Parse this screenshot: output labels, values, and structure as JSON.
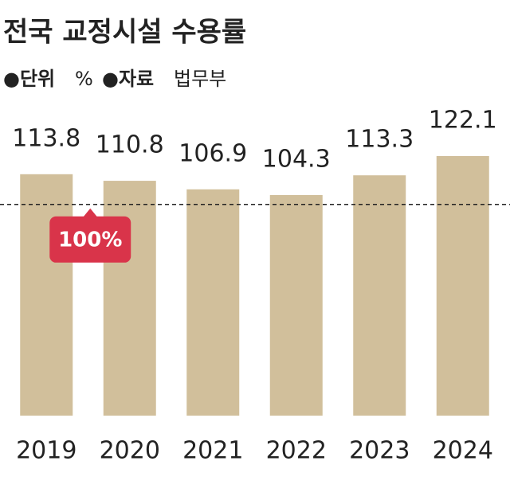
{
  "chart_data": {
    "type": "bar",
    "title": "전국 교정시설 수용률",
    "unit_label": "●단위",
    "unit": "%",
    "source_label": "●자료",
    "source": "법무부",
    "categories": [
      "2019",
      "2020",
      "2021",
      "2022",
      "2023",
      "2024"
    ],
    "values": [
      113.8,
      110.8,
      106.9,
      104.3,
      113.3,
      122.1
    ],
    "color": "#d1bf9b",
    "ylim": [
      3.6,
      125
    ],
    "reference_line": {
      "value": 100,
      "label": "100%",
      "color": "#d9344a"
    }
  }
}
